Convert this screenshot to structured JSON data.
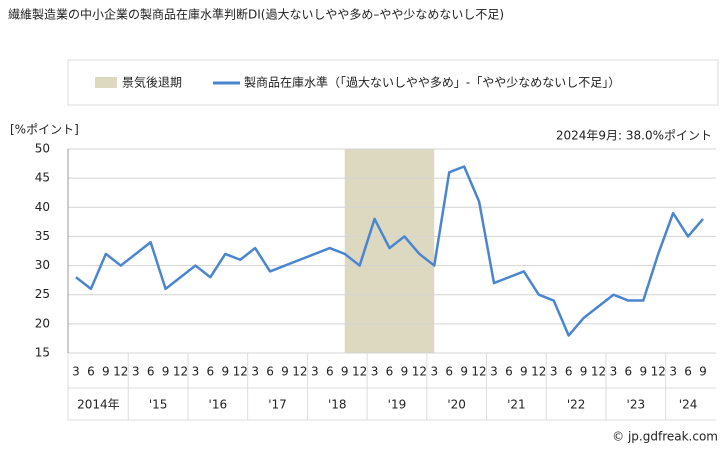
{
  "chart_data": {
    "type": "line",
    "title": "繊維製造業の中小企業の製商品在庫水準判断DI(過大ないしやや多め–やや少なめないし不足)",
    "y_unit": "[%ポイント]",
    "annotation": "2024年9月: 38.0%ポイント",
    "source": "© jp.gdfreak.com",
    "categories": [
      "3",
      "6",
      "9",
      "12",
      "3",
      "6",
      "9",
      "12",
      "3",
      "6",
      "9",
      "12",
      "3",
      "6",
      "9",
      "12",
      "3",
      "6",
      "9",
      "12",
      "3",
      "6",
      "9",
      "12",
      "3",
      "6",
      "9",
      "12",
      "3",
      "6",
      "9",
      "12",
      "3",
      "6",
      "9",
      "12",
      "3",
      "6",
      "9",
      "12",
      "3",
      "6",
      "9"
    ],
    "year_labels": [
      "2014年",
      "'15",
      "'16",
      "'17",
      "'18",
      "'19",
      "'20",
      "'21",
      "'22",
      "'23",
      "'24"
    ],
    "shade": {
      "name": "景気後退期",
      "color": "#ddd8c0",
      "start": 18,
      "end": 24
    },
    "series": [
      {
        "name": "製商品在庫水準（「過大ないしやや多め」-「やや少なめないし不足」）",
        "color": "#4a86d0",
        "values": [
          28,
          26,
          32,
          30,
          32,
          34,
          26,
          28,
          30,
          28,
          32,
          31,
          33,
          29,
          30,
          31,
          32,
          33,
          32,
          30,
          38,
          33,
          35,
          32,
          30,
          46,
          47,
          41,
          27,
          28,
          29,
          25,
          24,
          18,
          21,
          23,
          25,
          24,
          24,
          32,
          39,
          35,
          38
        ]
      }
    ],
    "ylim": [
      15,
      50
    ],
    "yticks": [
      15,
      20,
      25,
      30,
      35,
      40,
      45,
      50
    ],
    "grid": true
  }
}
